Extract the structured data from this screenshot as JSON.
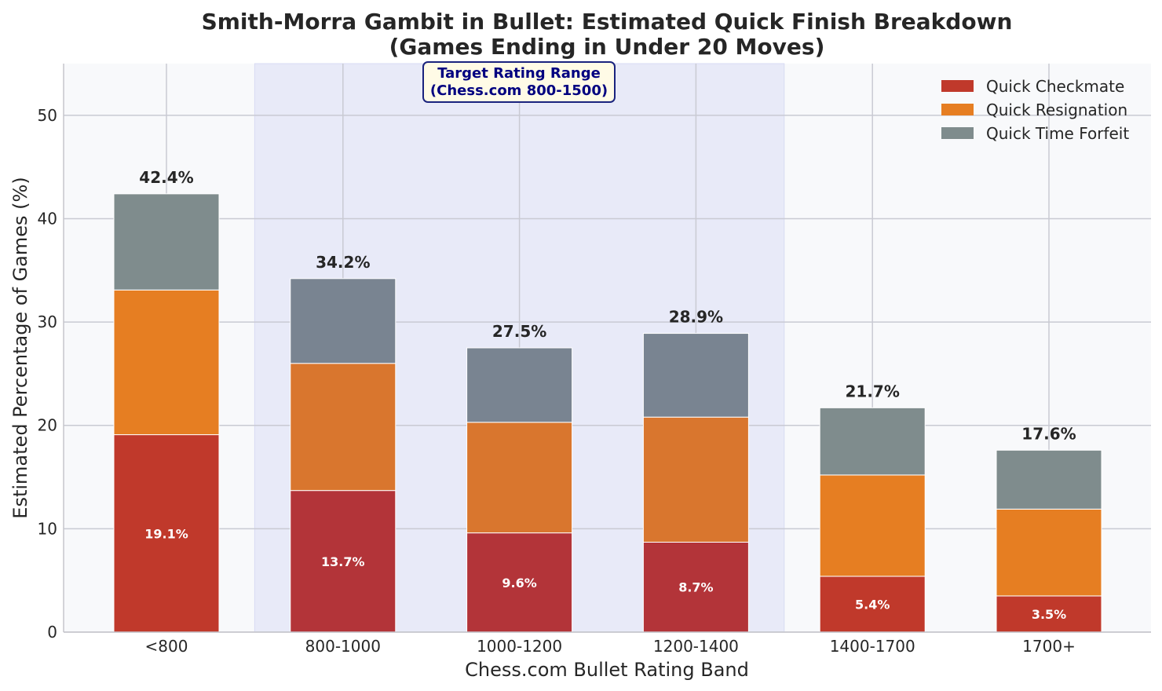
{
  "chart_data": {
    "type": "bar",
    "stacked": true,
    "title_line1": "Smith-Morra Gambit in Bullet: Estimated Quick Finish Breakdown",
    "title_line2": "(Games Ending in Under 20 Moves)",
    "xlabel": "Chess.com Bullet Rating Band",
    "ylabel": "Estimated Percentage of Games (%)",
    "ylim": [
      0,
      55
    ],
    "yticks": [
      0,
      10,
      20,
      30,
      40,
      50
    ],
    "grid": true,
    "legend_placement": "top-right",
    "categories": [
      "<800",
      "800-1000",
      "1000-1200",
      "1200-1400",
      "1400-1700",
      "1700+"
    ],
    "series": [
      {
        "name": "Quick Checkmate",
        "values": [
          19.1,
          13.7,
          9.6,
          8.7,
          5.4,
          3.5
        ],
        "color": "#c0392b",
        "highlight_color": "#b33439"
      },
      {
        "name": "Quick Resignation",
        "values": [
          14.0,
          12.3,
          10.7,
          12.1,
          9.8,
          8.4
        ],
        "color": "#e67e22",
        "highlight_color": "#d9762e"
      },
      {
        "name": "Quick Time Forfeit",
        "values": [
          9.3,
          8.2,
          7.2,
          8.1,
          6.5,
          5.7
        ],
        "color": "#7f8c8d",
        "highlight_color": "#798491"
      }
    ],
    "totals": [
      "42.4%",
      "34.2%",
      "27.5%",
      "28.9%",
      "21.7%",
      "17.6%"
    ],
    "checkmate_labels": [
      "19.1%",
      "13.7%",
      "9.6%",
      "8.7%",
      "5.4%",
      "3.5%"
    ],
    "highlight_categories": [
      "800-1000",
      "1000-1200",
      "1200-1400"
    ],
    "highlight_color": "#e8eaf8",
    "background_color": "#f8f9fb",
    "annotation": {
      "line1": "Target Rating Range",
      "line2": "(Chess.com 800-1500)",
      "text_color": "#000080",
      "box_color": "#fffbe6"
    }
  }
}
